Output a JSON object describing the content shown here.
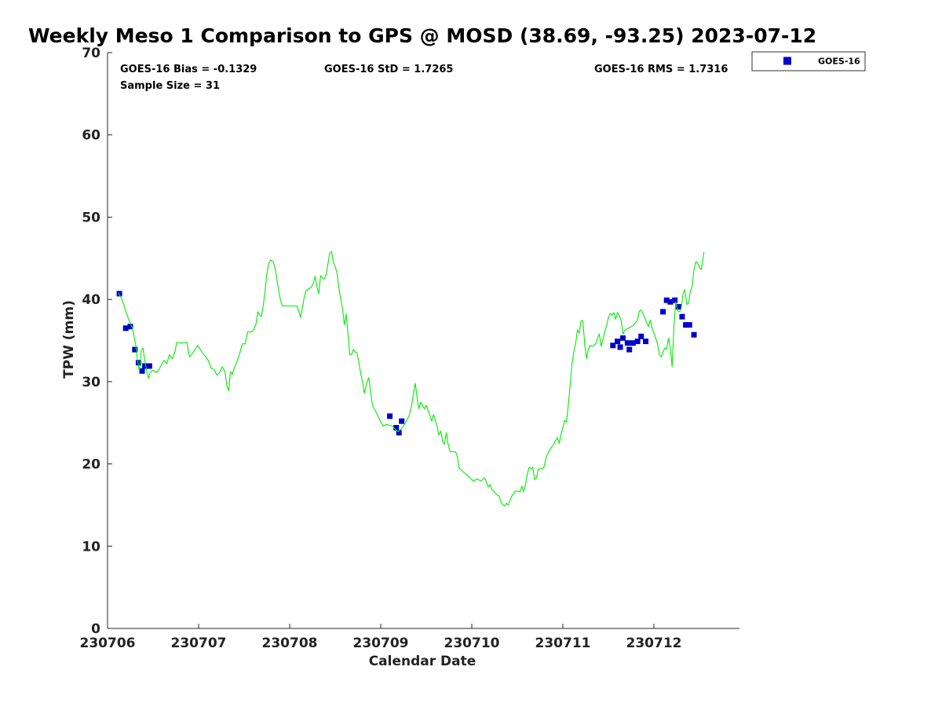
{
  "colors": {
    "gps_line": "#00ee00",
    "goes_marker": "#0000cc",
    "axis": "#262626"
  },
  "chart_data": {
    "type": "scatter",
    "title": "Weekly Meso 1 Comparison to GPS @ MOSD (38.69, -93.25) 2023-07-12",
    "xlabel": "Calendar Date",
    "ylabel": "TPW (mm)",
    "xlim": [
      0,
      6.95
    ],
    "ylim": [
      0,
      70
    ],
    "x_ticks": [
      {
        "value": 0,
        "label": "230706"
      },
      {
        "value": 1,
        "label": "230707"
      },
      {
        "value": 2,
        "label": "230708"
      },
      {
        "value": 3,
        "label": "230709"
      },
      {
        "value": 4,
        "label": "230710"
      },
      {
        "value": 5,
        "label": "230711"
      },
      {
        "value": 6,
        "label": "230712"
      }
    ],
    "y_ticks": [
      0,
      10,
      20,
      30,
      40,
      50,
      60,
      70
    ],
    "stats": {
      "bias": "GOES-16 Bias = -0.1329",
      "std": "GOES-16 StD = 1.7265",
      "rms": "GOES-16 RMS = 1.7316",
      "sample": "Sample Size = 31"
    },
    "legend": [
      {
        "name": "GOES-16",
        "marker": "square"
      }
    ],
    "series": [
      {
        "name": "GPS",
        "kind": "line",
        "points": [
          [
            0.12,
            40.8
          ],
          [
            0.15,
            40.2
          ],
          [
            0.18,
            39.3
          ],
          [
            0.21,
            38.2
          ],
          [
            0.24,
            37.4
          ],
          [
            0.27,
            36.6
          ],
          [
            0.29,
            35.6
          ],
          [
            0.31,
            34.4
          ],
          [
            0.33,
            32.5
          ],
          [
            0.35,
            31.2
          ],
          [
            0.37,
            33.8
          ],
          [
            0.39,
            34.1
          ],
          [
            0.41,
            32.4
          ],
          [
            0.43,
            31.3
          ],
          [
            0.45,
            30.4
          ],
          [
            0.47,
            31.2
          ],
          [
            0.5,
            31.4
          ],
          [
            0.53,
            31.1
          ],
          [
            0.56,
            31.4
          ],
          [
            0.59,
            32.0
          ],
          [
            0.62,
            32.6
          ],
          [
            0.65,
            32.2
          ],
          [
            0.68,
            33.3
          ],
          [
            0.71,
            32.8
          ],
          [
            0.74,
            33.6
          ],
          [
            0.76,
            34.8
          ],
          [
            0.8,
            34.7
          ],
          [
            0.84,
            34.7
          ],
          [
            0.87,
            34.8
          ],
          [
            0.9,
            33.0
          ],
          [
            0.93,
            33.4
          ],
          [
            0.96,
            33.9
          ],
          [
            0.99,
            34.4
          ],
          [
            1.02,
            33.9
          ],
          [
            1.05,
            33.4
          ],
          [
            1.08,
            33.0
          ],
          [
            1.11,
            32.5
          ],
          [
            1.14,
            31.6
          ],
          [
            1.17,
            31.5
          ],
          [
            1.2,
            30.8
          ],
          [
            1.23,
            31.1
          ],
          [
            1.26,
            31.8
          ],
          [
            1.29,
            31.2
          ],
          [
            1.31,
            29.5
          ],
          [
            1.33,
            28.9
          ],
          [
            1.35,
            31.2
          ],
          [
            1.37,
            30.9
          ],
          [
            1.39,
            31.6
          ],
          [
            1.42,
            32.4
          ],
          [
            1.45,
            33.4
          ],
          [
            1.48,
            34.6
          ],
          [
            1.51,
            34.6
          ],
          [
            1.54,
            36.1
          ],
          [
            1.57,
            36.0
          ],
          [
            1.6,
            36.2
          ],
          [
            1.63,
            37.0
          ],
          [
            1.65,
            38.5
          ],
          [
            1.67,
            38.1
          ],
          [
            1.69,
            37.9
          ],
          [
            1.71,
            39.3
          ],
          [
            1.73,
            41.1
          ],
          [
            1.75,
            43.2
          ],
          [
            1.77,
            44.3
          ],
          [
            1.79,
            44.8
          ],
          [
            1.82,
            44.6
          ],
          [
            1.84,
            43.8
          ],
          [
            1.86,
            42.4
          ],
          [
            1.88,
            41.0
          ],
          [
            1.9,
            39.9
          ],
          [
            1.92,
            39.2
          ],
          [
            1.96,
            39.2
          ],
          [
            2.0,
            39.2
          ],
          [
            2.04,
            39.2
          ],
          [
            2.08,
            39.2
          ],
          [
            2.1,
            38.6
          ],
          [
            2.12,
            37.8
          ],
          [
            2.14,
            39.0
          ],
          [
            2.16,
            40.3
          ],
          [
            2.18,
            41.1
          ],
          [
            2.21,
            41.3
          ],
          [
            2.24,
            41.5
          ],
          [
            2.26,
            42.0
          ],
          [
            2.28,
            42.8
          ],
          [
            2.3,
            41.5
          ],
          [
            2.32,
            40.7
          ],
          [
            2.34,
            42.9
          ],
          [
            2.36,
            42.6
          ],
          [
            2.38,
            42.5
          ],
          [
            2.4,
            43.0
          ],
          [
            2.42,
            44.3
          ],
          [
            2.44,
            45.6
          ],
          [
            2.46,
            45.8
          ],
          [
            2.48,
            44.5
          ],
          [
            2.5,
            44.0
          ],
          [
            2.52,
            43.2
          ],
          [
            2.54,
            41.5
          ],
          [
            2.56,
            40.0
          ],
          [
            2.58,
            38.9
          ],
          [
            2.6,
            36.9
          ],
          [
            2.62,
            38.2
          ],
          [
            2.64,
            35.9
          ],
          [
            2.66,
            33.3
          ],
          [
            2.68,
            33.3
          ],
          [
            2.7,
            33.9
          ],
          [
            2.72,
            33.6
          ],
          [
            2.74,
            33.5
          ],
          [
            2.76,
            32.3
          ],
          [
            2.78,
            31.0
          ],
          [
            2.8,
            30.0
          ],
          [
            2.82,
            28.6
          ],
          [
            2.85,
            30.0
          ],
          [
            2.87,
            30.5
          ],
          [
            2.89,
            28.6
          ],
          [
            2.91,
            27.1
          ],
          [
            2.94,
            26.5
          ],
          [
            2.97,
            25.8
          ],
          [
            3.0,
            25.1
          ],
          [
            3.03,
            24.6
          ],
          [
            3.06,
            24.8
          ],
          [
            3.1,
            24.7
          ],
          [
            3.13,
            24.6
          ],
          [
            3.16,
            24.2
          ],
          [
            3.19,
            23.9
          ],
          [
            3.22,
            24.2
          ],
          [
            3.25,
            24.6
          ],
          [
            3.28,
            25.2
          ],
          [
            3.31,
            25.8
          ],
          [
            3.34,
            27.1
          ],
          [
            3.36,
            28.6
          ],
          [
            3.38,
            29.8
          ],
          [
            3.4,
            28.0
          ],
          [
            3.42,
            26.7
          ],
          [
            3.44,
            27.5
          ],
          [
            3.46,
            27.1
          ],
          [
            3.48,
            26.7
          ],
          [
            3.5,
            27.1
          ],
          [
            3.53,
            26.2
          ],
          [
            3.56,
            25.2
          ],
          [
            3.58,
            26.0
          ],
          [
            3.6,
            25.3
          ],
          [
            3.62,
            24.5
          ],
          [
            3.64,
            23.5
          ],
          [
            3.66,
            24.0
          ],
          [
            3.68,
            22.7
          ],
          [
            3.7,
            22.4
          ],
          [
            3.72,
            23.8
          ],
          [
            3.74,
            22.4
          ],
          [
            3.76,
            21.5
          ],
          [
            3.79,
            21.5
          ],
          [
            3.82,
            21.5
          ],
          [
            3.84,
            21.0
          ],
          [
            3.86,
            19.5
          ],
          [
            3.9,
            19.1
          ],
          [
            3.94,
            18.7
          ],
          [
            3.98,
            18.3
          ],
          [
            4.02,
            17.9
          ],
          [
            4.06,
            18.2
          ],
          [
            4.1,
            17.9
          ],
          [
            4.14,
            18.3
          ],
          [
            4.16,
            17.8
          ],
          [
            4.18,
            17.2
          ],
          [
            4.2,
            17.5
          ],
          [
            4.22,
            16.9
          ],
          [
            4.24,
            16.7
          ],
          [
            4.27,
            16.3
          ],
          [
            4.3,
            16.1
          ],
          [
            4.32,
            15.4
          ],
          [
            4.34,
            15.0
          ],
          [
            4.36,
            14.9
          ],
          [
            4.38,
            15.2
          ],
          [
            4.4,
            15.0
          ],
          [
            4.42,
            15.6
          ],
          [
            4.45,
            16.3
          ],
          [
            4.48,
            16.7
          ],
          [
            4.51,
            16.7
          ],
          [
            4.53,
            16.6
          ],
          [
            4.55,
            17.3
          ],
          [
            4.57,
            16.6
          ],
          [
            4.59,
            17.5
          ],
          [
            4.61,
            18.8
          ],
          [
            4.63,
            19.6
          ],
          [
            4.65,
            19.4
          ],
          [
            4.67,
            19.6
          ],
          [
            4.69,
            18.1
          ],
          [
            4.71,
            18.3
          ],
          [
            4.73,
            19.4
          ],
          [
            4.76,
            19.4
          ],
          [
            4.79,
            19.5
          ],
          [
            4.82,
            20.9
          ],
          [
            4.86,
            21.8
          ],
          [
            4.9,
            22.4
          ],
          [
            4.94,
            23.2
          ],
          [
            4.96,
            22.5
          ],
          [
            4.98,
            23.6
          ],
          [
            5.0,
            24.4
          ],
          [
            5.02,
            25.3
          ],
          [
            5.04,
            25.1
          ],
          [
            5.06,
            27.2
          ],
          [
            5.08,
            29.6
          ],
          [
            5.1,
            32.1
          ],
          [
            5.12,
            33.6
          ],
          [
            5.14,
            34.6
          ],
          [
            5.16,
            36.3
          ],
          [
            5.18,
            35.9
          ],
          [
            5.2,
            37.4
          ],
          [
            5.22,
            37.4
          ],
          [
            5.24,
            34.6
          ],
          [
            5.26,
            32.8
          ],
          [
            5.28,
            34.0
          ],
          [
            5.3,
            34.4
          ],
          [
            5.32,
            34.3
          ],
          [
            5.34,
            34.4
          ],
          [
            5.36,
            34.6
          ],
          [
            5.38,
            35.3
          ],
          [
            5.4,
            35.8
          ],
          [
            5.42,
            34.3
          ],
          [
            5.44,
            35.1
          ],
          [
            5.46,
            36.1
          ],
          [
            5.48,
            36.8
          ],
          [
            5.5,
            37.8
          ],
          [
            5.52,
            38.3
          ],
          [
            5.54,
            38.1
          ],
          [
            5.56,
            38.4
          ],
          [
            5.58,
            37.6
          ],
          [
            5.6,
            38.4
          ],
          [
            5.62,
            38.0
          ],
          [
            5.64,
            37.5
          ],
          [
            5.66,
            35.8
          ],
          [
            5.68,
            36.2
          ],
          [
            5.7,
            36.4
          ],
          [
            5.74,
            36.6
          ],
          [
            5.78,
            36.9
          ],
          [
            5.82,
            37.5
          ],
          [
            5.84,
            38.6
          ],
          [
            5.86,
            38.7
          ],
          [
            5.88,
            38.3
          ],
          [
            5.9,
            37.8
          ],
          [
            5.92,
            37.2
          ],
          [
            5.94,
            36.7
          ],
          [
            5.96,
            37.5
          ],
          [
            5.98,
            36.5
          ],
          [
            6.0,
            35.9
          ],
          [
            6.02,
            35.3
          ],
          [
            6.04,
            34.6
          ],
          [
            6.06,
            33.3
          ],
          [
            6.08,
            33.0
          ],
          [
            6.1,
            33.6
          ],
          [
            6.12,
            34.1
          ],
          [
            6.14,
            34.0
          ],
          [
            6.16,
            35.3
          ],
          [
            6.18,
            34.1
          ],
          [
            6.2,
            31.8
          ],
          [
            6.22,
            36.8
          ],
          [
            6.24,
            39.7
          ],
          [
            6.26,
            38.6
          ],
          [
            6.28,
            38.5
          ],
          [
            6.3,
            38.9
          ],
          [
            6.32,
            40.7
          ],
          [
            6.34,
            41.2
          ],
          [
            6.36,
            39.4
          ],
          [
            6.38,
            39.5
          ],
          [
            6.4,
            41.0
          ],
          [
            6.42,
            41.6
          ],
          [
            6.44,
            43.6
          ],
          [
            6.46,
            44.6
          ],
          [
            6.48,
            44.4
          ],
          [
            6.5,
            43.9
          ],
          [
            6.52,
            43.6
          ],
          [
            6.55,
            45.8
          ]
        ]
      },
      {
        "name": "GOES-16",
        "kind": "markers",
        "points": [
          [
            0.13,
            40.7
          ],
          [
            0.2,
            36.5
          ],
          [
            0.25,
            36.7
          ],
          [
            0.3,
            33.9
          ],
          [
            0.34,
            32.3
          ],
          [
            0.38,
            31.3
          ],
          [
            0.41,
            31.9
          ],
          [
            0.46,
            31.9
          ],
          [
            3.1,
            25.8
          ],
          [
            3.17,
            24.4
          ],
          [
            3.2,
            23.8
          ],
          [
            3.23,
            25.2
          ],
          [
            5.55,
            34.4
          ],
          [
            5.6,
            34.9
          ],
          [
            5.63,
            34.2
          ],
          [
            5.66,
            35.3
          ],
          [
            5.71,
            34.7
          ],
          [
            5.73,
            33.9
          ],
          [
            5.77,
            34.7
          ],
          [
            5.82,
            34.9
          ],
          [
            5.86,
            35.5
          ],
          [
            5.91,
            34.9
          ],
          [
            6.1,
            38.5
          ],
          [
            6.14,
            39.9
          ],
          [
            6.18,
            39.7
          ],
          [
            6.23,
            39.9
          ],
          [
            6.27,
            39.1
          ],
          [
            6.31,
            37.9
          ],
          [
            6.35,
            36.9
          ],
          [
            6.39,
            36.9
          ],
          [
            6.44,
            35.7
          ]
        ]
      }
    ]
  }
}
